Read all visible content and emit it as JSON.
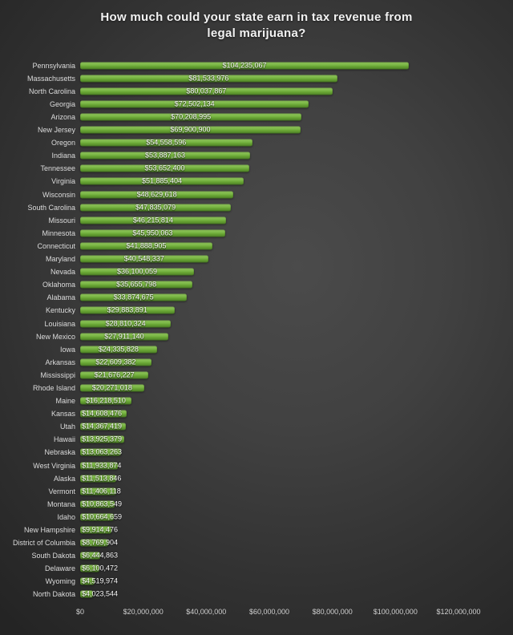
{
  "page": {
    "title_line1": "How much could your state earn in tax revenue from",
    "title_line2": "legal marijuana?"
  },
  "chart_data": {
    "type": "bar",
    "orientation": "horizontal",
    "title": "How much could your state earn in tax revenue from legal marijuana?",
    "xlabel": "",
    "ylabel": "",
    "legend": "none",
    "grid": "off",
    "sort": "descending",
    "axis": {
      "min": 0,
      "max": 120000000,
      "tick_interval": 20000000,
      "tick_labels": [
        "$0",
        "$20,000,000",
        "$40,000,000",
        "$60,000,000",
        "$80,000,000",
        "$100,000,000",
        "$120,000,000"
      ]
    },
    "categories": [
      "Pennsylvania",
      "Massachusetts",
      "North Carolina",
      "Georgia",
      "Arizona",
      "New Jersey",
      "Oregon",
      "Indiana",
      "Tennessee",
      "Virginia",
      "Wisconsin",
      "South Carolina",
      "Missouri",
      "Minnesota",
      "Connecticut",
      "Maryland",
      "Nevada",
      "Oklahoma",
      "Alabama",
      "Kentucky",
      "Louisiana",
      "New Mexico",
      "Iowa",
      "Arkansas",
      "Mississippi",
      "Rhode Island",
      "Maine",
      "Kansas",
      "Utah",
      "Hawaii",
      "Nebraska",
      "West Virginia",
      "Alaska",
      "Vermont",
      "Montana",
      "Idaho",
      "New Hampshire",
      "District of Columbia",
      "South Dakota",
      "Delaware",
      "Wyoming",
      "North Dakota"
    ],
    "values": [
      104235067,
      81533976,
      80037867,
      72502134,
      70208995,
      69900900,
      54558596,
      53887163,
      53652400,
      51885404,
      48629618,
      47835079,
      46215814,
      45950063,
      41888905,
      40548337,
      36100059,
      35655798,
      33874675,
      29883891,
      28810324,
      27911140,
      24335828,
      22609382,
      21676227,
      20271018,
      16218510,
      14608476,
      14367419,
      13925379,
      13063263,
      11933874,
      11513846,
      11406118,
      10863549,
      10664659,
      9914476,
      8769904,
      6444863,
      6100472,
      4519974,
      4023544
    ],
    "value_prefix": "$",
    "colors": {
      "bar_top": "#90c75c",
      "bar_main": "#74b23f",
      "bar_bottom": "#4e8226",
      "category_text": "#dcdcdc",
      "value_text": "#fbfbfb",
      "axis_text": "#cfcfcf",
      "title_text": "#f2f2f2",
      "background_center": "#4b4b4b",
      "background_edge": "#242424"
    }
  }
}
